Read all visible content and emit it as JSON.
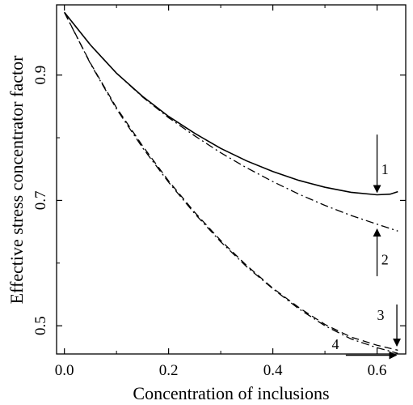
{
  "chart_data": {
    "type": "line",
    "xlabel": "Concentration of inclusions",
    "ylabel": "Effective stress concentrator factor",
    "xlim": [
      -0.015,
      0.655
    ],
    "ylim": [
      0.455,
      1.012
    ],
    "x_ticks": [
      "0.0",
      "0.2",
      "0.4",
      "0.6"
    ],
    "x_tick_values": [
      0.0,
      0.2,
      0.4,
      0.6
    ],
    "y_ticks": [
      "0.5",
      "0.7",
      "0.9"
    ],
    "y_tick_values": [
      0.5,
      0.7,
      0.9
    ],
    "grid": false,
    "series": [
      {
        "label": "1",
        "style": "solid",
        "points": [
          [
            0.0,
            1.0
          ],
          [
            0.05,
            0.948
          ],
          [
            0.1,
            0.903
          ],
          [
            0.15,
            0.866
          ],
          [
            0.2,
            0.834
          ],
          [
            0.25,
            0.807
          ],
          [
            0.3,
            0.783
          ],
          [
            0.35,
            0.763
          ],
          [
            0.4,
            0.746
          ],
          [
            0.45,
            0.732
          ],
          [
            0.5,
            0.721
          ],
          [
            0.55,
            0.713
          ],
          [
            0.6,
            0.709
          ],
          [
            0.625,
            0.71
          ],
          [
            0.64,
            0.714
          ]
        ]
      },
      {
        "label": "2",
        "style": "dashdot",
        "points": [
          [
            0.0,
            1.0
          ],
          [
            0.05,
            0.948
          ],
          [
            0.1,
            0.903
          ],
          [
            0.15,
            0.865
          ],
          [
            0.2,
            0.832
          ],
          [
            0.25,
            0.803
          ],
          [
            0.3,
            0.776
          ],
          [
            0.35,
            0.752
          ],
          [
            0.4,
            0.73
          ],
          [
            0.45,
            0.71
          ],
          [
            0.5,
            0.692
          ],
          [
            0.55,
            0.676
          ],
          [
            0.6,
            0.662
          ],
          [
            0.64,
            0.651
          ]
        ]
      },
      {
        "label": "3",
        "style": "dashed",
        "points": [
          [
            0.0,
            1.0
          ],
          [
            0.05,
            0.919
          ],
          [
            0.1,
            0.848
          ],
          [
            0.15,
            0.787
          ],
          [
            0.2,
            0.731
          ],
          [
            0.25,
            0.681
          ],
          [
            0.3,
            0.636
          ],
          [
            0.35,
            0.596
          ],
          [
            0.4,
            0.56
          ],
          [
            0.45,
            0.529
          ],
          [
            0.5,
            0.502
          ],
          [
            0.55,
            0.482
          ],
          [
            0.6,
            0.469
          ],
          [
            0.64,
            0.461
          ]
        ]
      },
      {
        "label": "4",
        "style": "dashdot",
        "points": [
          [
            0.0,
            1.0
          ],
          [
            0.05,
            0.918
          ],
          [
            0.1,
            0.846
          ],
          [
            0.15,
            0.784
          ],
          [
            0.2,
            0.729
          ],
          [
            0.25,
            0.679
          ],
          [
            0.3,
            0.634
          ],
          [
            0.35,
            0.594
          ],
          [
            0.4,
            0.559
          ],
          [
            0.45,
            0.527
          ],
          [
            0.5,
            0.5
          ],
          [
            0.55,
            0.479
          ],
          [
            0.6,
            0.465
          ],
          [
            0.64,
            0.456
          ]
        ]
      }
    ],
    "annotations": [
      {
        "label": "1",
        "points_to_series": "1",
        "arrow": "down"
      },
      {
        "label": "2",
        "points_to_series": "2",
        "arrow": "up"
      },
      {
        "label": "3",
        "points_to_series": "3",
        "arrow": "down"
      },
      {
        "label": "4",
        "points_to_series": "4",
        "arrow": "right"
      }
    ]
  }
}
